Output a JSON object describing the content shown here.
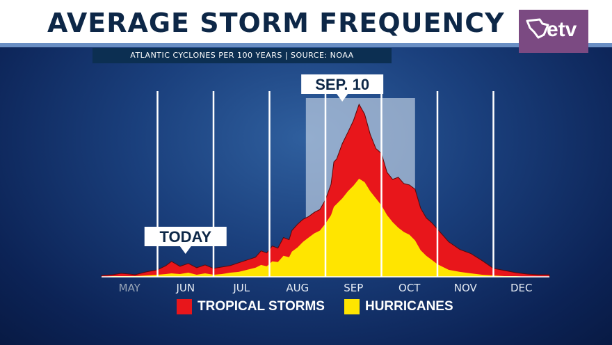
{
  "title": "AVERAGE STORM FREQUENCY",
  "subtitle": "ATLANTIC CYCLONES PER 100 YEARS | SOURCE: NOAA",
  "logo": {
    "text": "etv",
    "color": "#7b4a82"
  },
  "chart_data": {
    "type": "area",
    "title": "AVERAGE STORM FREQUENCY",
    "subtitle": "ATLANTIC CYCLONES PER 100 YEARS | SOURCE: NOAA",
    "categories": [
      "MAY",
      "JUN",
      "JUL",
      "AUG",
      "SEP",
      "OCT",
      "NOV",
      "DEC"
    ],
    "grid": true,
    "legend_position": "bottom-center",
    "series": [
      {
        "name": "TROPICAL STORMS",
        "color": "#e8161b",
        "x": [
          5.0,
          5.2,
          5.35,
          5.5,
          5.6,
          5.8,
          6.0,
          6.15,
          6.25,
          6.4,
          6.55,
          6.7,
          6.85,
          7.0,
          7.15,
          7.3,
          7.45,
          7.6,
          7.75,
          7.85,
          7.95,
          8.05,
          8.15,
          8.25,
          8.35,
          8.4,
          8.5,
          8.6,
          8.7,
          8.8,
          8.9,
          9.0,
          9.1,
          9.15,
          9.2,
          9.3,
          9.4,
          9.5,
          9.6,
          9.7,
          9.8,
          9.9,
          10.0,
          10.1,
          10.2,
          10.3,
          10.4,
          10.5,
          10.6,
          10.7,
          10.8,
          10.9,
          11.0,
          11.2,
          11.4,
          11.6,
          11.8,
          12.0,
          12.2,
          12.4,
          12.6,
          12.8,
          13.0
        ],
        "values": [
          2,
          3,
          5,
          4,
          3,
          7,
          10,
          16,
          22,
          15,
          19,
          13,
          17,
          12,
          14,
          16,
          20,
          24,
          28,
          37,
          34,
          44,
          41,
          56,
          53,
          66,
          75,
          82,
          86,
          92,
          96,
          110,
          132,
          164,
          168,
          190,
          206,
          223,
          246,
          232,
          203,
          183,
          176,
          149,
          139,
          142,
          133,
          131,
          125,
          98,
          84,
          77,
          68,
          50,
          39,
          33,
          23,
          12,
          9,
          6,
          4,
          3,
          3
        ]
      },
      {
        "name": "HURRICANES",
        "color": "#ffe500",
        "x": [
          5.0,
          5.2,
          5.35,
          5.5,
          5.6,
          5.8,
          6.0,
          6.15,
          6.25,
          6.4,
          6.55,
          6.7,
          6.85,
          7.0,
          7.15,
          7.3,
          7.45,
          7.6,
          7.75,
          7.85,
          7.95,
          8.05,
          8.15,
          8.25,
          8.35,
          8.4,
          8.5,
          8.6,
          8.7,
          8.8,
          8.9,
          9.0,
          9.1,
          9.15,
          9.2,
          9.3,
          9.4,
          9.5,
          9.6,
          9.7,
          9.8,
          9.9,
          10.0,
          10.1,
          10.2,
          10.3,
          10.4,
          10.5,
          10.6,
          10.7,
          10.8,
          10.9,
          11.0,
          11.2,
          11.4,
          11.6,
          11.8,
          12.0,
          12.2,
          12.4,
          12.6,
          12.8,
          13.0
        ],
        "values": [
          0,
          1,
          1,
          1,
          1,
          2,
          3,
          4,
          5,
          4,
          6,
          3,
          5,
          3,
          4,
          6,
          7,
          10,
          13,
          17,
          15,
          22,
          21,
          30,
          28,
          36,
          42,
          50,
          56,
          62,
          66,
          76,
          88,
          100,
          104,
          112,
          122,
          130,
          140,
          135,
          122,
          112,
          102,
          88,
          78,
          70,
          64,
          60,
          52,
          38,
          30,
          24,
          18,
          10,
          7,
          5,
          3,
          2,
          1,
          1,
          0,
          0,
          0
        ]
      }
    ],
    "annotations": [
      {
        "label": "SEP. 10",
        "x": 9.3,
        "highlight_range": [
          8.65,
          10.6
        ]
      },
      {
        "label": "TODAY",
        "x": 6.5
      }
    ]
  }
}
